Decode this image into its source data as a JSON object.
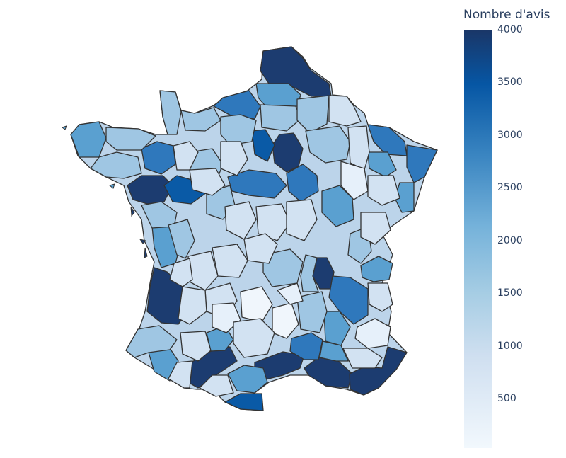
{
  "colorbar": {
    "title": "Nombre d'avis",
    "ticks": [
      "4000",
      "3500",
      "3000",
      "2500",
      "2000",
      "1500",
      "1000",
      "500"
    ],
    "tick_values": [
      4000,
      3500,
      3000,
      2500,
      2000,
      1500,
      1000,
      500
    ],
    "min": 0,
    "max": 4000,
    "colors": {
      "high": "#1a3667",
      "mid": "#3a85c1",
      "low": "#f2f8fd"
    }
  },
  "map": {
    "region": "France",
    "border_color": "#333333"
  }
}
